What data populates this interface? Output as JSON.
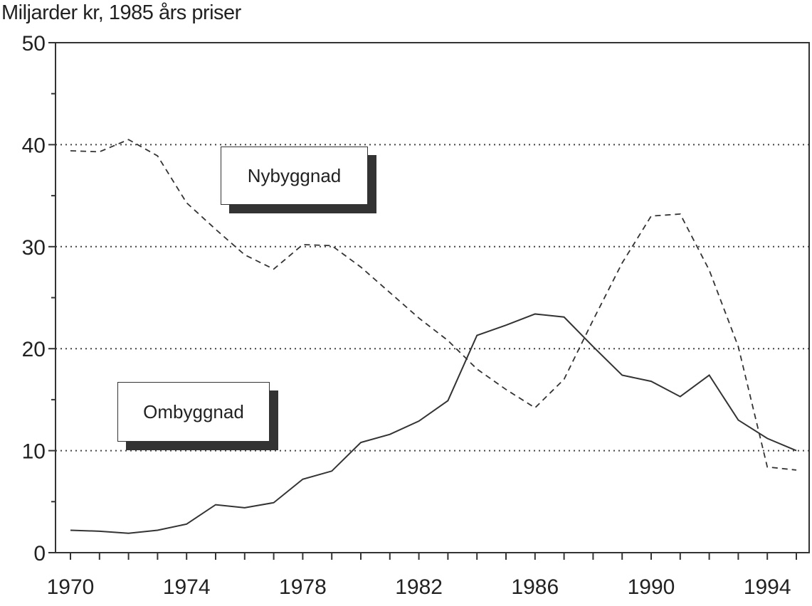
{
  "chart_data": {
    "type": "line",
    "title": "",
    "ylabel": "Miljarder kr, 1985 års priser",
    "xlabel": "",
    "ylim": [
      0,
      50
    ],
    "xlim": [
      1970,
      1995
    ],
    "yticks": [
      0,
      10,
      20,
      30,
      40,
      50
    ],
    "xticks": [
      1970,
      1974,
      1978,
      1982,
      1986,
      1990,
      1994
    ],
    "grid": "horizontal dotted at 10, 20, 30, 40",
    "x": [
      1970,
      1971,
      1972,
      1973,
      1974,
      1975,
      1976,
      1977,
      1978,
      1979,
      1980,
      1981,
      1982,
      1983,
      1984,
      1985,
      1986,
      1987,
      1988,
      1989,
      1990,
      1991,
      1992,
      1993,
      1994,
      1995
    ],
    "series": [
      {
        "name": "Nybyggnad",
        "style": "dashed",
        "values": [
          39.4,
          39.3,
          40.5,
          38.9,
          34.3,
          31.7,
          29.2,
          27.8,
          30.2,
          30.1,
          28.0,
          25.5,
          23.0,
          20.8,
          18.0,
          16.0,
          14.2,
          17.0,
          22.8,
          28.4,
          33.0,
          33.2,
          27.7,
          20.2,
          8.4,
          8.1
        ]
      },
      {
        "name": "Ombyggnad",
        "style": "solid",
        "values": [
          2.2,
          2.1,
          1.9,
          2.2,
          2.8,
          4.7,
          4.4,
          4.9,
          7.2,
          8.0,
          10.8,
          11.6,
          12.9,
          14.9,
          21.3,
          22.3,
          23.4,
          23.1,
          20.2,
          17.4,
          16.8,
          15.3,
          17.4,
          13.0,
          11.2,
          10.0
        ]
      }
    ],
    "annotations": [
      "Nybyggnad",
      "Ombyggnad"
    ]
  }
}
